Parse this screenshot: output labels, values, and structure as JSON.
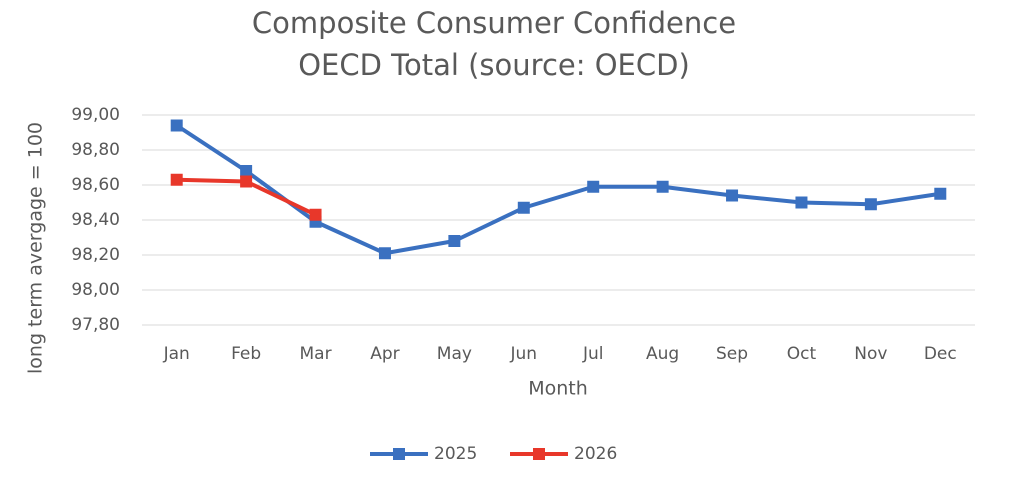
{
  "chart_data": {
    "type": "line",
    "title": "Composite Consumer Confidence",
    "subtitle": "OECD Total (source: OECD)",
    "x_label": "Month",
    "y_label": "long term avergage = 100",
    "categories": [
      "Jan",
      "Feb",
      "Mar",
      "Apr",
      "May",
      "Jun",
      "Jul",
      "Aug",
      "Sep",
      "Oct",
      "Nov",
      "Dec"
    ],
    "series": [
      {
        "name": "2025",
        "color": "#3a70c0",
        "values": [
          98.94,
          98.68,
          98.39,
          98.21,
          98.28,
          98.47,
          98.59,
          98.59,
          98.54,
          98.5,
          98.49,
          98.55
        ]
      },
      {
        "name": "2026",
        "color": "#e8372a",
        "values": [
          98.63,
          98.62,
          98.43,
          null,
          null,
          null,
          null,
          null,
          null,
          null,
          null,
          null
        ]
      }
    ],
    "ylim": [
      97.8,
      99.0
    ],
    "yticks": [
      {
        "value": 97.8,
        "label": "97,80"
      },
      {
        "value": 98.0,
        "label": "98,00"
      },
      {
        "value": 98.2,
        "label": "98,20"
      },
      {
        "value": 98.4,
        "label": "98,40"
      },
      {
        "value": 98.6,
        "label": "98,60"
      },
      {
        "value": 98.8,
        "label": "98,80"
      },
      {
        "value": 99.0,
        "label": "99,00"
      }
    ],
    "grid": true,
    "legend": "bottom"
  }
}
